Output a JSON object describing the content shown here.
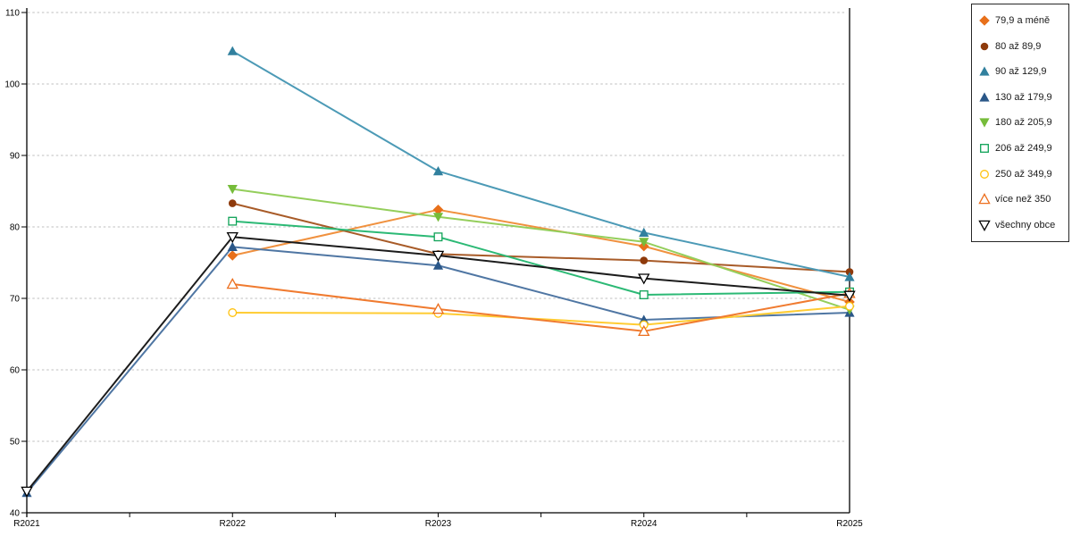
{
  "chart_data": {
    "type": "line",
    "title": "",
    "x_categories": [
      "R2021",
      "R2022",
      "R2023",
      "R2024",
      "R2025"
    ],
    "y_axis": {
      "min": 40,
      "max": 110,
      "step": 10
    },
    "grid": "horizontal-dashed",
    "legend_position": "right",
    "series": [
      {
        "name": "79,9 a méně",
        "marker": "diamond",
        "filled": true,
        "color": "#E8701A",
        "line_color": "#F0913F",
        "values": [
          null,
          76.0,
          82.4,
          77.3,
          69.5
        ]
      },
      {
        "name": "80 až 89,9",
        "marker": "circle",
        "filled": true,
        "color": "#8E3A0B",
        "line_color": "#A85B28",
        "values": [
          null,
          83.3,
          76.2,
          75.3,
          73.7
        ]
      },
      {
        "name": "90 až 129,9",
        "marker": "triangle-up",
        "filled": true,
        "color": "#31809E",
        "line_color": "#4C9AB6",
        "values": [
          null,
          104.6,
          87.8,
          79.2,
          73.0
        ]
      },
      {
        "name": "130 až 179,9",
        "marker": "triangle-up",
        "filled": true,
        "color": "#2A5788",
        "line_color": "#4F76A3",
        "values": [
          42.8,
          77.2,
          74.6,
          67.0,
          68.0
        ]
      },
      {
        "name": "180 až 205,9",
        "marker": "triangle-down",
        "filled": true,
        "color": "#76BC3A",
        "line_color": "#94CE5B",
        "values": [
          null,
          85.3,
          81.4,
          77.9,
          68.4
        ]
      },
      {
        "name": "206 až 249,9",
        "marker": "square",
        "filled": false,
        "color": "#0FA257",
        "line_color": "#2CB975",
        "values": [
          null,
          80.8,
          78.6,
          70.5,
          70.9
        ]
      },
      {
        "name": "250 až 349,9",
        "marker": "circle",
        "filled": false,
        "color": "#FFC20E",
        "line_color": "#FFCC33",
        "values": [
          null,
          68.0,
          67.9,
          66.3,
          68.9
        ]
      },
      {
        "name": "více než 350",
        "marker": "triangle-up",
        "filled": false,
        "color": "#EC6F1E",
        "line_color": "#F07B30",
        "values": [
          null,
          72.0,
          68.5,
          65.4,
          70.7
        ]
      },
      {
        "name": "všechny obce",
        "marker": "triangle-down",
        "filled": false,
        "color": "#000000",
        "line_color": "#1C1C1C",
        "values": [
          43.0,
          78.6,
          76.0,
          72.8,
          70.4
        ]
      }
    ],
    "axis_color": "#000000",
    "gridline_color": "#BFBFBF"
  }
}
